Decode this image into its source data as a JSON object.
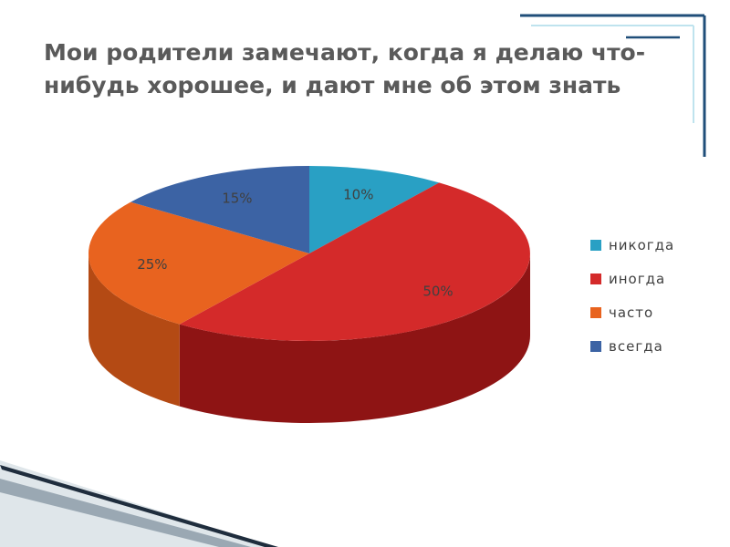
{
  "slide": {
    "title": "Мои родители замечают, когда я делаю что-нибудь хорошее, и дают мне об этом знать"
  },
  "colors": {
    "frame": "#1f4e79",
    "frame_light": "#bfe3ee",
    "title": "#5a5a5a"
  },
  "chart_data": {
    "type": "pie",
    "style": "3d",
    "categories": [
      "никогда",
      "иногда",
      "часто",
      "всегда"
    ],
    "values": [
      10,
      50,
      25,
      15
    ],
    "data_labels": [
      "10%",
      "50%",
      "25%",
      "15%"
    ],
    "colors": [
      "#29a0c4",
      "#d42a2a",
      "#e8631f",
      "#3c63a4"
    ],
    "side_colors": [
      "#1c7a96",
      "#8e1414",
      "#b44a14",
      "#2a4878"
    ],
    "legend": {
      "position": "right",
      "entries": [
        "никогда",
        "иногда",
        "часто",
        "всегда"
      ]
    }
  }
}
